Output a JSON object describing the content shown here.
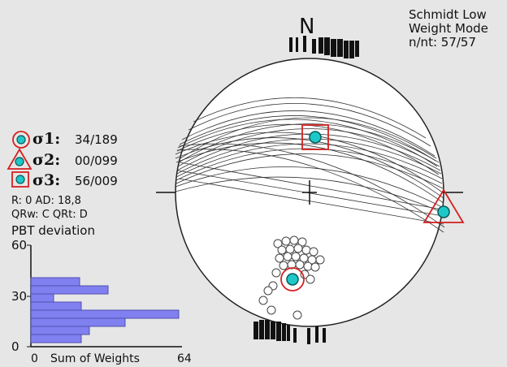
{
  "header": {
    "line1": "Schmidt Low",
    "line2": "Weight Mode",
    "line3": "n/nt: 57/57"
  },
  "north_label": "N",
  "stresses": [
    {
      "label": "σ1:",
      "value": "34/189",
      "symbol": "circle-icon"
    },
    {
      "label": "σ2:",
      "value": "00/099",
      "symbol": "triangle-icon"
    },
    {
      "label": "σ3:",
      "value": "56/009",
      "symbol": "square-icon"
    }
  ],
  "stats": {
    "r_ad": "R: 0   AD: 18,8",
    "qr": "QRw: C  QRt: D"
  },
  "histogram": {
    "title": "PBT deviation",
    "y_ticks": [
      "60",
      "30",
      "0"
    ],
    "x_label_left": "0",
    "x_label": "Sum of Weights",
    "x_label_right": "64"
  },
  "colors": {
    "marker_fill": "#1ec8c8",
    "marker_outline": "#d42020",
    "histogram_bar": "#8080f0",
    "background": "#e6e6e6"
  }
}
